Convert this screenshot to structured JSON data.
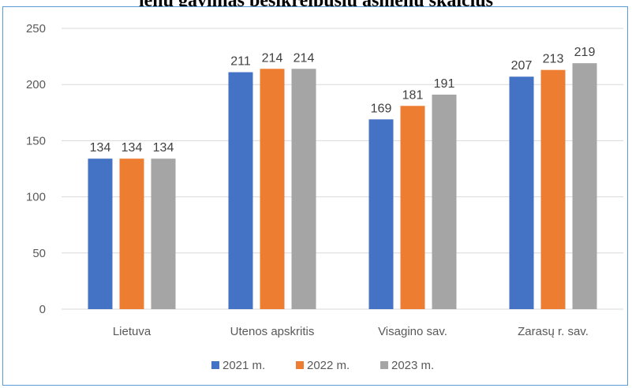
{
  "header": {
    "title_fragment": "ienų gavimas besikreipusių asmenų skaičius"
  },
  "chart_data": {
    "type": "bar",
    "categories": [
      "Lietuva",
      "Utenos apskritis",
      "Visagino sav.",
      "Zarasų r. sav."
    ],
    "series": [
      {
        "name": "2021 m.",
        "color": "#4472c4",
        "values": [
          134,
          211,
          169,
          207
        ]
      },
      {
        "name": "2022 m.",
        "color": "#ed7d31",
        "values": [
          134,
          214,
          181,
          213
        ]
      },
      {
        "name": "2023 m.",
        "color": "#a5a5a5",
        "values": [
          134,
          214,
          191,
          219
        ]
      }
    ],
    "yticks": [
      0,
      50,
      100,
      150,
      200,
      250
    ],
    "ylim": [
      0,
      250
    ],
    "grid": true,
    "legend": "bottom",
    "title": "",
    "xlabel": "",
    "ylabel": ""
  }
}
